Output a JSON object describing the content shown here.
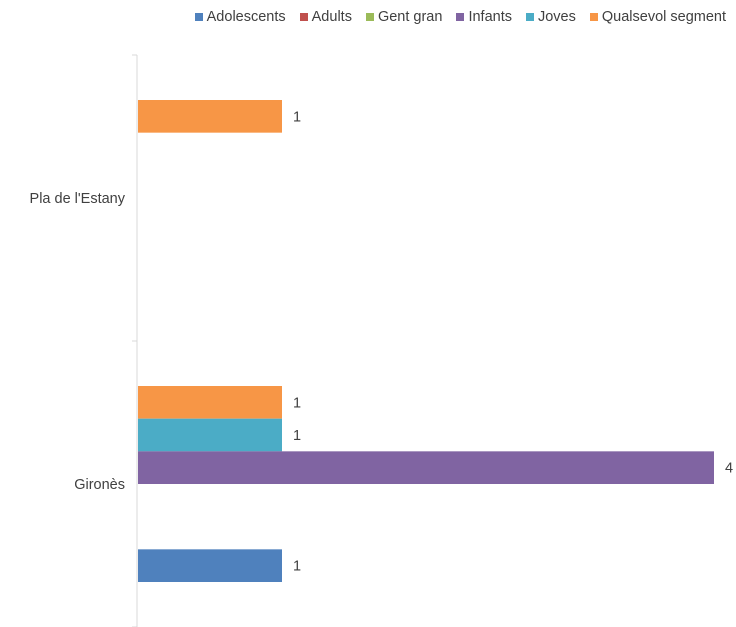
{
  "chart_data": {
    "type": "bar",
    "orientation": "horizontal",
    "categories": [
      "Pla de l'Estany",
      "Gironès"
    ],
    "series": [
      {
        "name": "Qualsevol segment",
        "color": "#F79646",
        "values": [
          1,
          1
        ]
      },
      {
        "name": "Joves",
        "color": "#4BACC6",
        "values": [
          null,
          1
        ]
      },
      {
        "name": "Infants",
        "color": "#8064A2",
        "values": [
          null,
          4
        ]
      },
      {
        "name": "Gent gran",
        "color": "#9BBB59",
        "values": [
          null,
          null
        ]
      },
      {
        "name": "Adults",
        "color": "#C0504D",
        "values": [
          null,
          null
        ]
      },
      {
        "name": "Adolescents",
        "color": "#4F81BD",
        "values": [
          null,
          1
        ]
      }
    ],
    "xlim": [
      0,
      4
    ],
    "legend_position": "top-right",
    "grid": false,
    "data_labels": true
  }
}
